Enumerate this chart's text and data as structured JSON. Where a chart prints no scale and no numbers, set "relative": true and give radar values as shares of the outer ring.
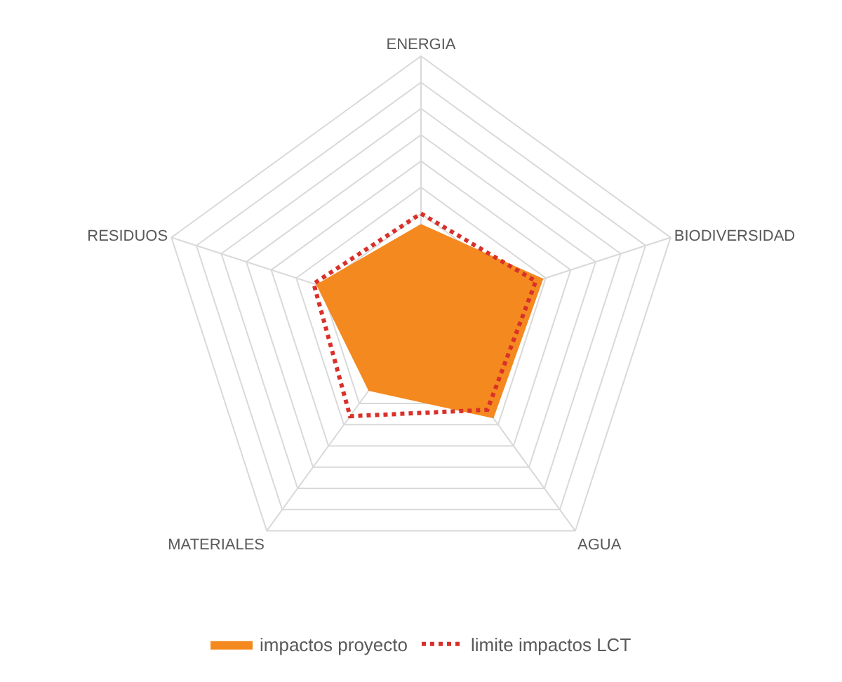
{
  "chart_data": {
    "type": "radar",
    "relative": true,
    "grid": true,
    "legend": "bottom",
    "categories": [
      "ENERGIA",
      "BIODIVERSIDAD",
      "AGUA",
      "MATERIALES",
      "RESIDUOS"
    ],
    "series": [
      {
        "name": "impactos proyecto",
        "type": "area",
        "color": "#f4891f",
        "values": [
          0.36,
          0.49,
          0.47,
          0.34,
          0.42
        ]
      },
      {
        "name": "limite impactos LCT",
        "type": "radar",
        "color": "#d9302a",
        "line_style": "dotted",
        "values": [
          0.4,
          0.46,
          0.43,
          0.46,
          0.43
        ]
      }
    ]
  }
}
